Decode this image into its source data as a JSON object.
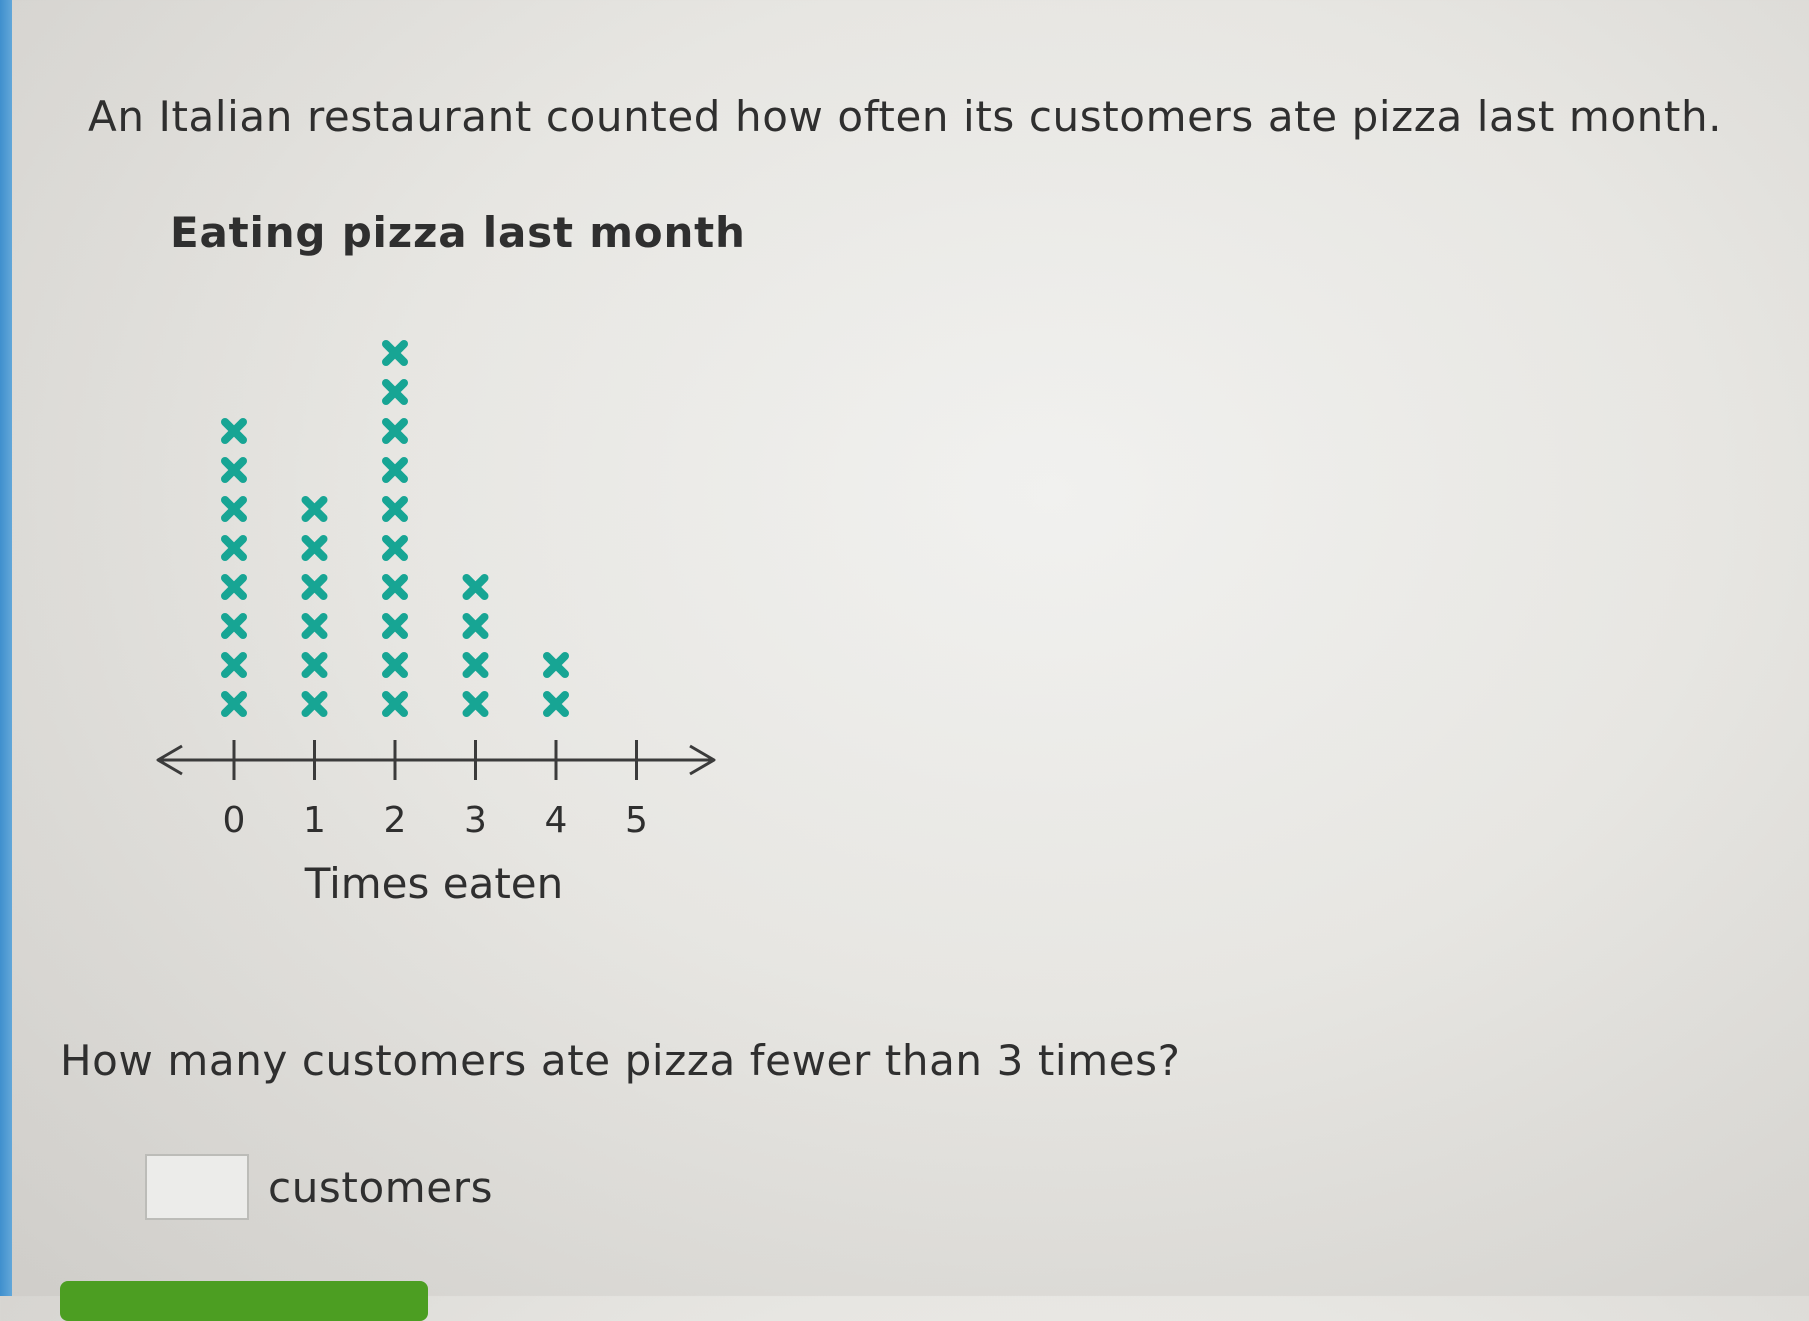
{
  "question": {
    "intro": "An Italian restaurant counted how often its customers ate pizza last month.",
    "prompt": "How many customers ate pizza fewer than 3 times?",
    "answer_value": "",
    "answer_unit": "customers"
  },
  "colors": {
    "marker": "#17a594",
    "axis": "#3b3b3b",
    "accent_bar": "#4a9bd6",
    "submit": "#4c9e22"
  },
  "chart_data": {
    "type": "line-plot",
    "title": "Eating pizza last month",
    "xlabel": "Times eaten",
    "categories": [
      "0",
      "1",
      "2",
      "3",
      "4",
      "5"
    ],
    "values": [
      8,
      6,
      10,
      4,
      2,
      0
    ],
    "marker": "x",
    "xlim": [
      0,
      5
    ],
    "grid": false,
    "legend": "none"
  }
}
